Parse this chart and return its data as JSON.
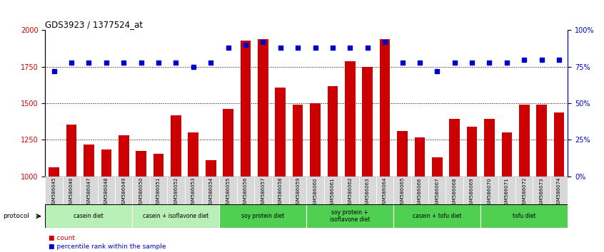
{
  "title": "GDS3923 / 1377524_at",
  "samples": [
    "GSM586045",
    "GSM586046",
    "GSM586047",
    "GSM586048",
    "GSM586049",
    "GSM586050",
    "GSM586051",
    "GSM586052",
    "GSM586053",
    "GSM586054",
    "GSM586055",
    "GSM586056",
    "GSM586057",
    "GSM586058",
    "GSM586059",
    "GSM586060",
    "GSM586061",
    "GSM586062",
    "GSM586063",
    "GSM586064",
    "GSM586065",
    "GSM586066",
    "GSM586067",
    "GSM586068",
    "GSM586069",
    "GSM586070",
    "GSM586071",
    "GSM586072",
    "GSM586073",
    "GSM586074"
  ],
  "counts": [
    1060,
    1355,
    1220,
    1185,
    1280,
    1175,
    1155,
    1420,
    1300,
    1110,
    1460,
    1930,
    1940,
    1610,
    1490,
    1500,
    1620,
    1790,
    1750,
    1940,
    1310,
    1265,
    1130,
    1395,
    1340,
    1395,
    1300,
    1490,
    1490,
    1435
  ],
  "percentile_ranks": [
    72,
    78,
    78,
    78,
    78,
    78,
    78,
    78,
    75,
    78,
    88,
    90,
    92,
    88,
    88,
    88,
    88,
    88,
    88,
    92,
    78,
    78,
    72,
    78,
    78,
    78,
    78,
    80,
    80,
    80
  ],
  "groups": [
    {
      "label": "casein diet",
      "start": 0,
      "end": 5,
      "color": "#b8f0b8"
    },
    {
      "label": "casein + isoflavone diet",
      "start": 5,
      "end": 10,
      "color": "#b8f0b8"
    },
    {
      "label": "soy protein diet",
      "start": 10,
      "end": 15,
      "color": "#50d050"
    },
    {
      "label": "soy protein +\nisoflavone diet",
      "start": 15,
      "end": 20,
      "color": "#50d050"
    },
    {
      "label": "casein + tofu diet",
      "start": 20,
      "end": 25,
      "color": "#50d050"
    },
    {
      "label": "tofu diet",
      "start": 25,
      "end": 30,
      "color": "#50d050"
    }
  ],
  "ylim_left": [
    1000,
    2000
  ],
  "ylim_right": [
    0,
    100
  ],
  "yticks_left": [
    1000,
    1250,
    1500,
    1750,
    2000
  ],
  "yticks_right": [
    0,
    25,
    50,
    75,
    100
  ],
  "bar_color": "#CC0000",
  "dot_color": "#0000CC",
  "bg_color": "#ffffff",
  "ticklabel_bg": "#d8d8d8"
}
